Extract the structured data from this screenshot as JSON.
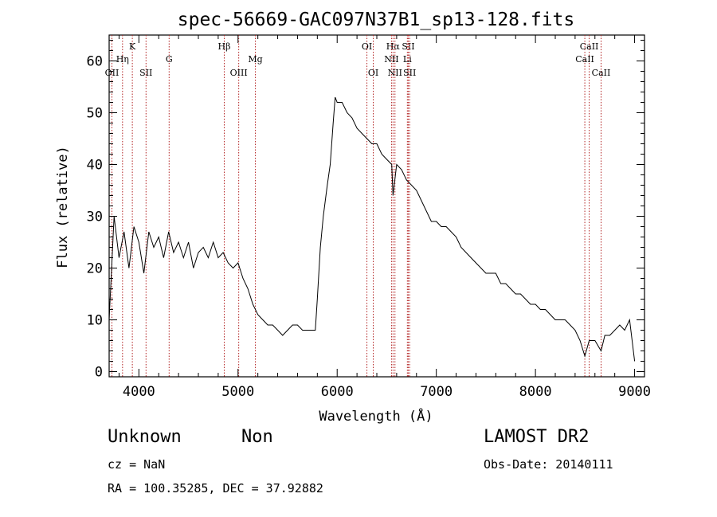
{
  "chart_data": {
    "type": "line",
    "title": "spec-56669-GAC097N37B1_sp13-128.fits",
    "xlabel": "Wavelength (Å)",
    "ylabel": "Flux (relative)",
    "xlim": [
      3700,
      9100
    ],
    "ylim": [
      -1,
      65
    ],
    "x_ticks": [
      4000,
      5000,
      6000,
      7000,
      8000,
      9000
    ],
    "y_ticks": [
      0,
      10,
      20,
      30,
      40,
      50,
      60
    ],
    "grid": false,
    "series": [
      {
        "x": [
          3700,
          3750,
          3800,
          3850,
          3900,
          3950,
          4000,
          4050,
          4100,
          4150,
          4200,
          4250,
          4300,
          4350,
          4400,
          4450,
          4500,
          4550,
          4600,
          4650,
          4700,
          4750,
          4800,
          4850,
          4900,
          4950,
          5000,
          5050,
          5100,
          5150,
          5200,
          5250,
          5300,
          5350,
          5400,
          5450,
          5500,
          5550,
          5600,
          5650,
          5700,
          5750,
          5780,
          5800,
          5830,
          5860,
          5900,
          5930,
          5960,
          5980,
          6000,
          6050,
          6100,
          6150,
          6200,
          6250,
          6300,
          6350,
          6400,
          6450,
          6500,
          6550,
          6563,
          6600,
          6650,
          6700,
          6750,
          6800,
          6850,
          6900,
          6950,
          7000,
          7050,
          7100,
          7150,
          7200,
          7250,
          7300,
          7350,
          7400,
          7450,
          7500,
          7550,
          7600,
          7650,
          7700,
          7750,
          7800,
          7850,
          7900,
          7950,
          8000,
          8050,
          8100,
          8150,
          8200,
          8250,
          8300,
          8350,
          8400,
          8450,
          8498,
          8542,
          8600,
          8662,
          8700,
          8750,
          8800,
          8850,
          8900,
          8950,
          9000
        ],
        "y": [
          10,
          30,
          22,
          27,
          20,
          28,
          25,
          19,
          27,
          24,
          26,
          22,
          27,
          23,
          25,
          22,
          25,
          20,
          23,
          24,
          22,
          25,
          22,
          23,
          21,
          20,
          21,
          18,
          16,
          13,
          11,
          10,
          9,
          9,
          8,
          7,
          8,
          9,
          9,
          8,
          8,
          8,
          8,
          14,
          24,
          30,
          36,
          40,
          48,
          53,
          52,
          52,
          50,
          49,
          47,
          46,
          45,
          44,
          44,
          42,
          41,
          40,
          34,
          40,
          39,
          37,
          36,
          35,
          33,
          31,
          29,
          29,
          28,
          28,
          27,
          26,
          24,
          23,
          22,
          21,
          20,
          19,
          19,
          19,
          17,
          17,
          16,
          15,
          15,
          14,
          13,
          13,
          12,
          12,
          11,
          10,
          10,
          10,
          9,
          8,
          6,
          3,
          6,
          6,
          4,
          7,
          7,
          8,
          9,
          8,
          10,
          2
        ]
      }
    ],
    "line_markers": [
      {
        "label": "OII",
        "x": 3728,
        "row": 2
      },
      {
        "label": "Hη",
        "x": 3835,
        "row": 1
      },
      {
        "label": "K",
        "x": 3934,
        "row": 0
      },
      {
        "label": "SII",
        "x": 4072,
        "row": 2
      },
      {
        "label": "G",
        "x": 4305,
        "row": 1
      },
      {
        "label": "Hβ",
        "x": 4861,
        "row": 0
      },
      {
        "label": "OIII",
        "x": 5007,
        "row": 2
      },
      {
        "label": "Mg",
        "x": 5175,
        "row": 1
      },
      {
        "label": "OI",
        "x": 6300,
        "row": 0
      },
      {
        "label": "OI",
        "x": 6364,
        "row": 2
      },
      {
        "label": "Hα",
        "x": 6563,
        "row": 0
      },
      {
        "label": "NII",
        "x": 6548,
        "row": 1
      },
      {
        "label": "NII",
        "x": 6583,
        "row": 2
      },
      {
        "label": "SII",
        "x": 6717,
        "row": 0
      },
      {
        "label": "Li",
        "x": 6708,
        "row": 1
      },
      {
        "label": "SII",
        "x": 6731,
        "row": 2
      },
      {
        "label": "CaII",
        "x": 8542,
        "row": 0
      },
      {
        "label": "CaII",
        "x": 8498,
        "row": 1
      },
      {
        "label": "CaII",
        "x": 8662,
        "row": 2
      }
    ]
  },
  "footer": {
    "class_label": "Unknown",
    "subclass_label": "Non",
    "cz_text": "cz = NaN",
    "coords_text": "RA = 100.35285, DEC =  37.92882",
    "survey_label": "LAMOST DR2",
    "obs_date_text": "Obs-Date: 20140111"
  },
  "colors": {
    "spectrum": "#000000",
    "line_markers": "#b22222",
    "background": "#ffffff"
  }
}
